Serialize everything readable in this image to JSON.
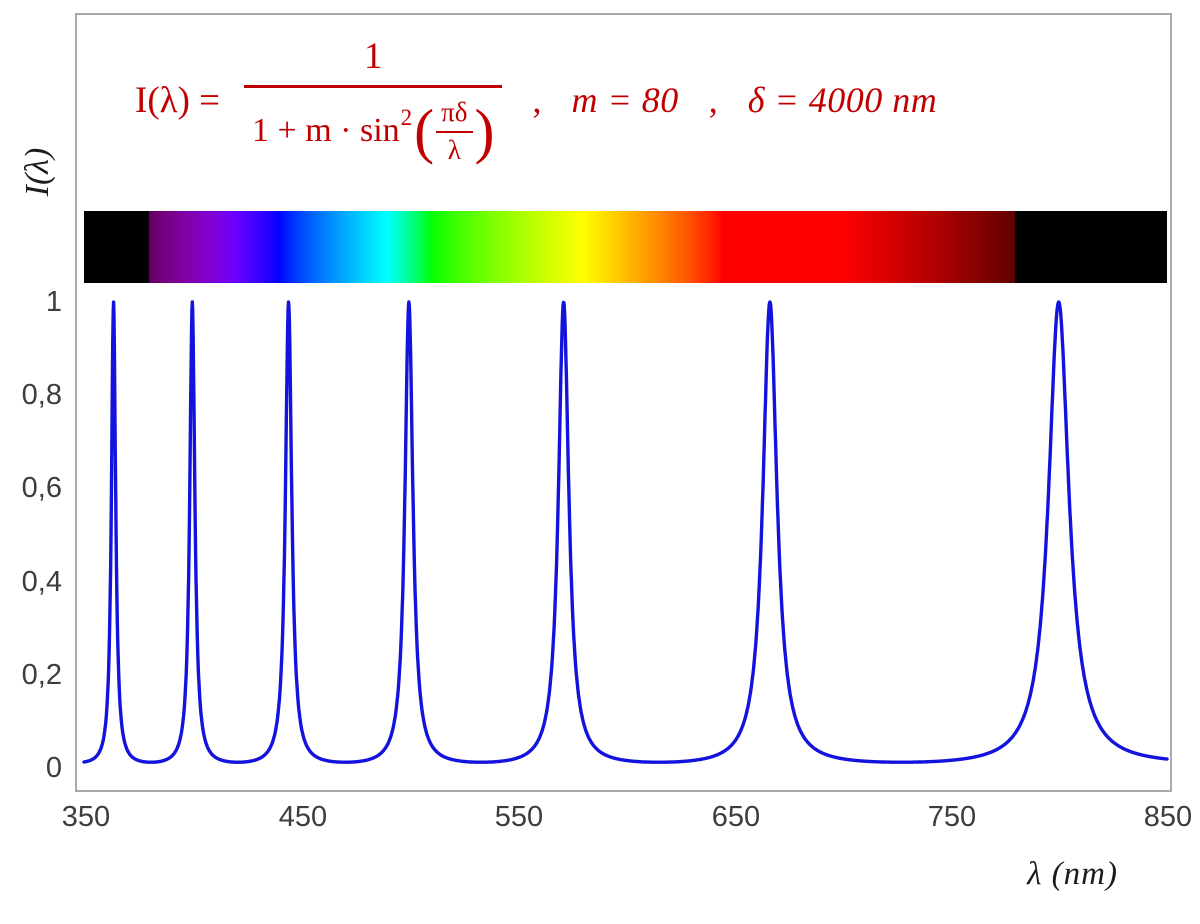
{
  "figure": {
    "background": "#ffffff",
    "border_color": "#a9a9a9"
  },
  "formula": {
    "color": "#c00000",
    "lhs": "I(λ) =",
    "numerator": "1",
    "den_prefix": "1 + m · sin",
    "den_sup": "2",
    "inner_num": "πδ",
    "inner_den": "λ",
    "comma1": ",",
    "m_eq": "m = 80",
    "comma2": ",",
    "delta_eq": "δ = 4000 nm"
  },
  "axes": {
    "y_title": "I(λ)",
    "x_title": "λ  (nm)",
    "x_ticks": [
      "350",
      "450",
      "550",
      "650",
      "750",
      "850"
    ],
    "y_ticks": [
      "1",
      "0,8",
      "0,6",
      "0,4",
      "0,2",
      "0"
    ]
  },
  "chart_data": {
    "type": "line",
    "title": "Airy transmission function I(λ) = 1 / (1 + m·sin²(πδ/λ))",
    "xlabel": "λ (nm)",
    "ylabel": "I(λ)",
    "xlim": [
      350,
      850
    ],
    "ylim": [
      0,
      1
    ],
    "x_tick_values": [
      350,
      450,
      550,
      650,
      750,
      850
    ],
    "y_tick_values": [
      0,
      0.2,
      0.4,
      0.6,
      0.8,
      1
    ],
    "grid": false,
    "legend": "none",
    "params": {
      "m": 80,
      "delta_nm": 4000
    },
    "series": [
      {
        "name": "I(λ)",
        "formula": "1 / (1 + m·sin²(π·δ/λ))",
        "peak_wavelengths_nm": [
          363.64,
          400.0,
          444.44,
          500.0,
          571.43,
          666.67,
          800.0
        ],
        "peak_value": 1.0,
        "baseline_value": 0.0123
      }
    ],
    "line_color": "#1313dd",
    "spectrum_band": {
      "description": "visible-light spectrum strip across top of plot",
      "from_nm": 350,
      "to_nm": 850,
      "visible_from_nm": 380,
      "visible_to_nm": 780,
      "outside_color": "#000000"
    }
  }
}
